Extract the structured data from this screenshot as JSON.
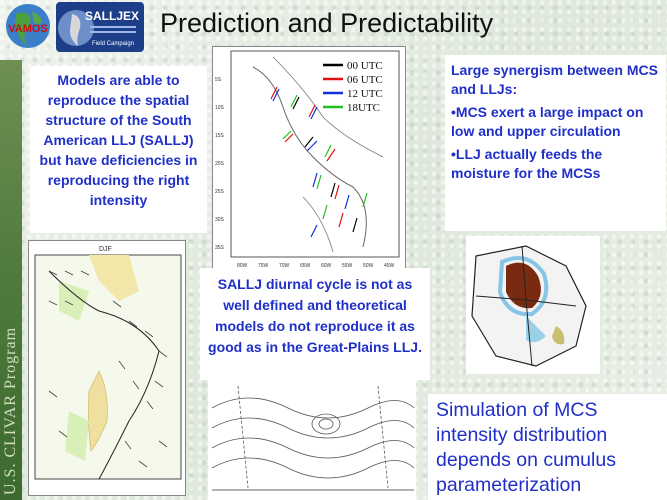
{
  "header": {
    "title": "Prediction and Predictability",
    "logo_left_text": "VAMOS",
    "logo_right_text": "SALLJEX",
    "logo_right_subtext": "Field Campaign"
  },
  "side_label": "U.S. CLIVAR Program",
  "text_boxes": {
    "models": "Models are able to reproduce the spatial structure of the South American LLJ (SALLJ) but have deficiencies in reproducing the right intensity",
    "synergy_title": "Large synergism between MCS and LLJs:",
    "synergy_bullet_1": "•MCS exert a large impact on low and upper circulation",
    "synergy_bullet_2": "•LLJ actually feeds the moisture for the MCSs",
    "diurnal": "SALLJ diurnal cycle is not as well defined and theoretical models do not reproduce it as good as  in the Great-Plains LLJ.",
    "simulation": "Simulation of MCS intensity distribution depends on cumulus parameterization"
  },
  "wind_map_legend": [
    {
      "label": "00 UTC",
      "color": "#000000"
    },
    {
      "label": "06 UTC",
      "color": "#e01010"
    },
    {
      "label": "12 UTC",
      "color": "#1030e0"
    },
    {
      "label": "18UTC",
      "color": "#20c020"
    }
  ],
  "wind_map_axes": {
    "y_ticks": [
      "5S",
      "10S",
      "15S",
      "20S",
      "25S",
      "30S",
      "35S"
    ],
    "x_ticks": [
      "80W",
      "75W",
      "70W",
      "65W",
      "60W",
      "55W",
      "50W",
      "45W"
    ]
  },
  "left_map_label": "DJF"
}
